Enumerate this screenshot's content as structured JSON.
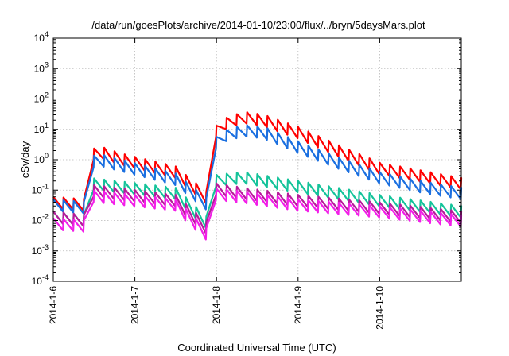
{
  "chart_data": {
    "type": "line",
    "title": "/data/run/goesPlots/archive/2014-01-10/23:00/flux/../bryn/5daysMars.plot",
    "xlabel": "Coordinated Universal Time (UTC)",
    "ylabel": "cSv/day",
    "yscale": "log",
    "ylim": [
      0.0001,
      10000
    ],
    "xlim": [
      "2014-01-06",
      "2014-01-11"
    ],
    "grid": true,
    "legend": "none",
    "y_ticks": [
      {
        "value": 0.0001,
        "base": "10",
        "exp": "-4"
      },
      {
        "value": 0.001,
        "base": "10",
        "exp": "-3"
      },
      {
        "value": 0.01,
        "base": "10",
        "exp": "-2"
      },
      {
        "value": 0.1,
        "base": "10",
        "exp": "-1"
      },
      {
        "value": 1,
        "base": "10",
        "exp": "0"
      },
      {
        "value": 10,
        "base": "10",
        "exp": "1"
      },
      {
        "value": 100,
        "base": "10",
        "exp": "2"
      },
      {
        "value": 1000,
        "base": "10",
        "exp": "3"
      },
      {
        "value": 10000,
        "base": "10",
        "exp": "4"
      }
    ],
    "x_ticks": [
      {
        "date": "2014-01-06",
        "label": "2014-1-6"
      },
      {
        "date": "2014-01-07",
        "label": "2014-1-7"
      },
      {
        "date": "2014-01-08",
        "label": "2014-1-8"
      },
      {
        "date": "2014-01-09",
        "label": "2014-1-9"
      },
      {
        "date": "2014-01-10",
        "label": "2014-1-10"
      }
    ],
    "series": [
      {
        "color": "#ff0000",
        "peaks": [
          [
            "2014-01-06 00:00",
            0.06
          ],
          [
            "2014-01-06 10:00",
            0.05
          ],
          [
            "2014-01-06 11:00",
            2.2
          ],
          [
            "2014-01-06 14:00",
            2.7
          ],
          [
            "2014-01-06 20:00",
            1.6
          ],
          [
            "2014-01-07 12:00",
            0.6
          ],
          [
            "2014-01-07 21:30",
            0.08
          ],
          [
            "2014-01-07 22:00",
            8
          ],
          [
            "2014-01-08 02:00",
            22
          ],
          [
            "2014-01-08 08:00",
            38
          ],
          [
            "2014-01-08 14:00",
            30
          ],
          [
            "2014-01-09 00:00",
            12
          ],
          [
            "2014-01-09 12:00",
            3
          ],
          [
            "2014-01-10 00:00",
            0.8
          ],
          [
            "2014-01-10 12:00",
            0.45
          ],
          [
            "2014-01-11 00:00",
            0.25
          ]
        ]
      },
      {
        "color": "#1a6fe0",
        "peaks": [
          [
            "2014-01-06 00:00",
            0.05
          ],
          [
            "2014-01-06 10:00",
            0.04
          ],
          [
            "2014-01-06 11:00",
            1.3
          ],
          [
            "2014-01-06 14:00",
            1.5
          ],
          [
            "2014-01-06 20:00",
            1.0
          ],
          [
            "2014-01-07 12:00",
            0.35
          ],
          [
            "2014-01-07 21:30",
            0.05
          ],
          [
            "2014-01-07 22:00",
            3.5
          ],
          [
            "2014-01-08 02:00",
            9
          ],
          [
            "2014-01-08 08:00",
            14
          ],
          [
            "2014-01-08 14:00",
            12
          ],
          [
            "2014-01-09 00:00",
            4
          ],
          [
            "2014-01-09 12:00",
            1.2
          ],
          [
            "2014-01-10 00:00",
            0.4
          ],
          [
            "2014-01-10 12:00",
            0.2
          ],
          [
            "2014-01-11 00:00",
            0.12
          ]
        ]
      },
      {
        "color": "#14c39a",
        "peaks": [
          [
            "2014-01-06 00:00",
            0.02
          ],
          [
            "2014-01-06 10:00",
            0.015
          ],
          [
            "2014-01-06 11:00",
            0.25
          ],
          [
            "2014-01-07 12:00",
            0.12
          ],
          [
            "2014-01-07 21:30",
            0.012
          ],
          [
            "2014-01-07 22:00",
            0.3
          ],
          [
            "2014-01-08 08:00",
            0.4
          ],
          [
            "2014-01-09 00:00",
            0.2
          ],
          [
            "2014-01-10 00:00",
            0.07
          ],
          [
            "2014-01-11 00:00",
            0.03
          ]
        ]
      },
      {
        "color": "#b71a9a",
        "peaks": [
          [
            "2014-01-06 00:00",
            0.02
          ],
          [
            "2014-01-06 10:00",
            0.015
          ],
          [
            "2014-01-06 11:00",
            0.15
          ],
          [
            "2014-01-07 12:00",
            0.07
          ],
          [
            "2014-01-07 21:30",
            0.008
          ],
          [
            "2014-01-07 22:00",
            0.18
          ],
          [
            "2014-01-08 08:00",
            0.12
          ],
          [
            "2014-01-09 00:00",
            0.07
          ],
          [
            "2014-01-10 00:00",
            0.04
          ],
          [
            "2014-01-11 00:00",
            0.02
          ]
        ]
      },
      {
        "color": "#f21ee8",
        "peaks": [
          [
            "2014-01-06 00:00",
            0.012
          ],
          [
            "2014-01-06 10:00",
            0.01
          ],
          [
            "2014-01-06 11:00",
            0.1
          ],
          [
            "2014-01-07 12:00",
            0.05
          ],
          [
            "2014-01-07 21:30",
            0.005
          ],
          [
            "2014-01-07 22:00",
            0.12
          ],
          [
            "2014-01-08 08:00",
            0.09
          ],
          [
            "2014-01-09 00:00",
            0.05
          ],
          [
            "2014-01-10 00:00",
            0.03
          ],
          [
            "2014-01-11 00:00",
            0.015
          ]
        ]
      }
    ]
  }
}
